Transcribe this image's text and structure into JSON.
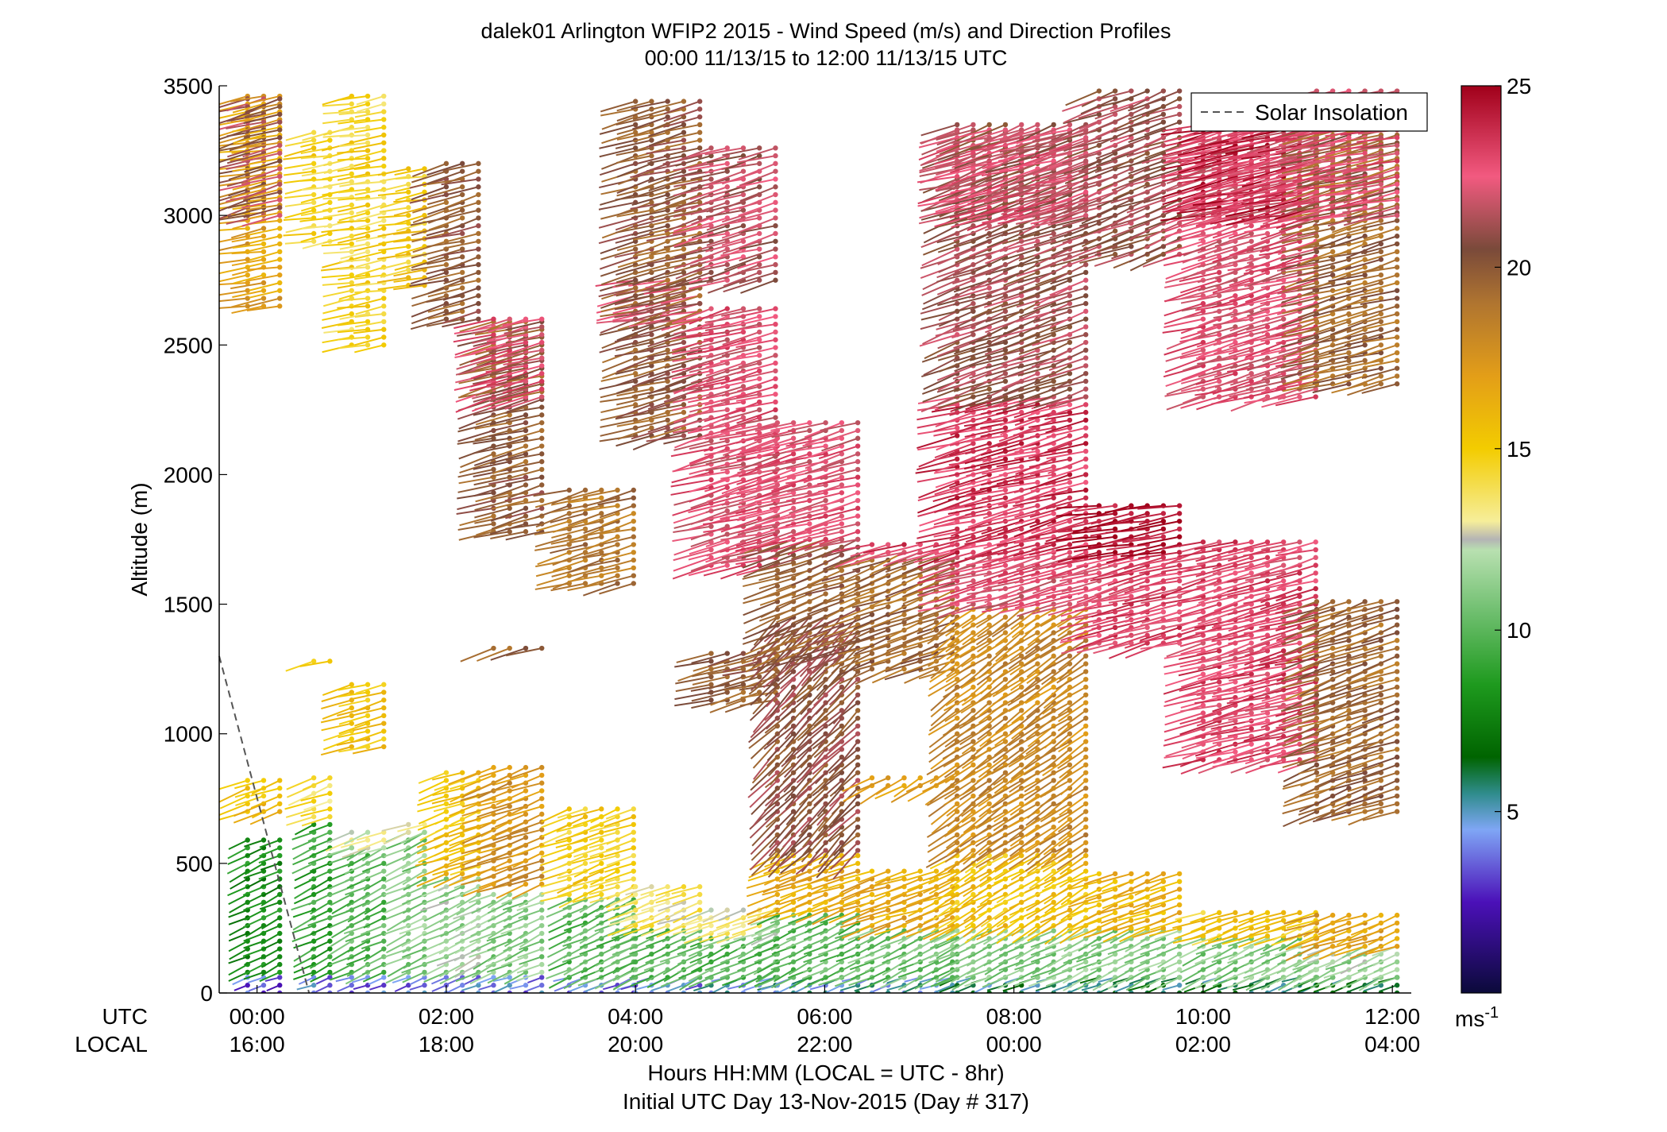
{
  "chart_data": {
    "type": "wind-barb-profile",
    "title_line1": "dalek01 Arlington WFIP2 2015 - Wind Speed (m/s) and Direction Profiles",
    "title_line2": "00:00 11/13/15 to 12:00 11/13/15  UTC",
    "ylabel": "Altitude (m)",
    "ylim": [
      0,
      3500
    ],
    "yticks": [
      0,
      500,
      1000,
      1500,
      2000,
      2500,
      3000,
      3500
    ],
    "xlim_hours": [
      -0.4,
      12.2
    ],
    "utc_row_label": "UTC",
    "local_row_label": "LOCAL",
    "xticks": [
      {
        "hour": 0,
        "utc": "00:00",
        "local": "16:00"
      },
      {
        "hour": 2,
        "utc": "02:00",
        "local": "18:00"
      },
      {
        "hour": 4,
        "utc": "04:00",
        "local": "20:00"
      },
      {
        "hour": 6,
        "utc": "06:00",
        "local": "22:00"
      },
      {
        "hour": 8,
        "utc": "08:00",
        "local": "00:00"
      },
      {
        "hour": 10,
        "utc": "10:00",
        "local": "02:00"
      },
      {
        "hour": 12,
        "utc": "12:00",
        "local": "04:00"
      }
    ],
    "xlabel_line1": "Hours HH:MM  (LOCAL = UTC - 8hr)",
    "xlabel_line2": "Initial UTC Day 13-Nov-2015 (Day # 317)",
    "legend": {
      "entry": "Solar Insolation",
      "placement": "top-right",
      "line_color": "#555555"
    },
    "solar_insolation_line": [
      [
        -0.4,
        1300
      ],
      [
        0.55,
        0
      ]
    ],
    "colorbar": {
      "range": [
        0,
        25
      ],
      "ticks": [
        5,
        10,
        15,
        20,
        25
      ],
      "unit": "ms-1",
      "colors": [
        {
          "v": 0,
          "c": "#0b0a3a"
        },
        {
          "v": 2.5,
          "c": "#4b10b8"
        },
        {
          "v": 4.5,
          "c": "#7fa6f5"
        },
        {
          "v": 5.5,
          "c": "#2f8c8c"
        },
        {
          "v": 6.5,
          "c": "#006400"
        },
        {
          "v": 8.5,
          "c": "#1e9a1e"
        },
        {
          "v": 10.5,
          "c": "#6fbf6f"
        },
        {
          "v": 12.2,
          "c": "#b8e0b0"
        },
        {
          "v": 12.5,
          "c": "#b4b4b4"
        },
        {
          "v": 13,
          "c": "#f6ee9a"
        },
        {
          "v": 15,
          "c": "#f3cc00"
        },
        {
          "v": 17,
          "c": "#e39e18"
        },
        {
          "v": 19,
          "c": "#b07530"
        },
        {
          "v": 20.5,
          "c": "#7a4a3a"
        },
        {
          "v": 22.5,
          "c": "#f25a80"
        },
        {
          "v": 25,
          "c": "#a0001a"
        }
      ]
    },
    "series_notes": "Wind barbs sampled every ~0.17 h; speed shown by colour and shaft length, direction by shaft angle (winds mostly from the west-southwest).",
    "profiles": [
      {
        "t0": -0.1,
        "t1": 0.4,
        "segments": [
          [
            0,
            80,
            3.5,
            250
          ],
          [
            80,
            600,
            8,
            245
          ],
          [
            700,
            830,
            15.5,
            250
          ],
          [
            2650,
            3460,
            17,
            260
          ],
          [
            3000,
            3460,
            21,
            255
          ]
        ]
      },
      {
        "t0": 0.6,
        "t1": 0.9,
        "segments": [
          [
            0,
            80,
            4,
            250
          ],
          [
            80,
            650,
            9,
            245
          ],
          [
            680,
            830,
            14,
            250
          ],
          [
            1280,
            1280,
            15,
            255
          ],
          [
            2900,
            3330,
            14.5,
            260
          ]
        ]
      },
      {
        "t0": 1.0,
        "t1": 1.5,
        "segments": [
          [
            0,
            80,
            4,
            250
          ],
          [
            80,
            560,
            10,
            245
          ],
          [
            560,
            620,
            12.3,
            250
          ],
          [
            950,
            1200,
            15.5,
            255
          ],
          [
            2500,
            3460,
            14.5,
            260
          ]
        ]
      },
      {
        "t0": 1.6,
        "t1": 1.9,
        "segments": [
          [
            0,
            80,
            4,
            250
          ],
          [
            80,
            620,
            11,
            245
          ],
          [
            620,
            650,
            12.4,
            250
          ],
          [
            2730,
            3180,
            15,
            260
          ]
        ]
      },
      {
        "t0": 2.0,
        "t1": 2.4,
        "segments": [
          [
            0,
            80,
            4,
            250
          ],
          [
            80,
            440,
            11.5,
            245
          ],
          [
            460,
            850,
            15.5,
            250
          ],
          [
            2600,
            3220,
            20,
            255
          ]
        ]
      },
      {
        "t0": 2.5,
        "t1": 3.1,
        "segments": [
          [
            0,
            80,
            4,
            250
          ],
          [
            80,
            400,
            11,
            245
          ],
          [
            420,
            870,
            17.5,
            250
          ],
          [
            1330,
            1350,
            20,
            255
          ],
          [
            1780,
            2600,
            20,
            255
          ],
          [
            2300,
            2600,
            22.5,
            255
          ]
        ]
      },
      {
        "t0": 3.3,
        "t1": 4.0,
        "segments": [
          [
            0,
            60,
            4,
            250
          ],
          [
            60,
            360,
            10,
            245
          ],
          [
            380,
            720,
            15,
            250
          ],
          [
            1580,
            1960,
            19,
            255
          ]
        ]
      },
      {
        "t0": 4.0,
        "t1": 4.7,
        "segments": [
          [
            0,
            60,
            4,
            250
          ],
          [
            60,
            260,
            10,
            245
          ],
          [
            260,
            430,
            13.5,
            250
          ],
          [
            2600,
            2750,
            22,
            260
          ],
          [
            2150,
            3460,
            20,
            255
          ]
        ]
      },
      {
        "t0": 4.8,
        "t1": 5.5,
        "segments": [
          [
            0,
            60,
            5,
            250
          ],
          [
            60,
            230,
            10,
            245
          ],
          [
            230,
            330,
            13,
            250
          ],
          [
            1130,
            1330,
            20,
            255
          ],
          [
            1650,
            2650,
            22.5,
            255
          ],
          [
            2750,
            3280,
            21.5,
            255
          ]
        ]
      },
      {
        "t0": 5.5,
        "t1": 6.5,
        "segments": [
          [
            0,
            60,
            5,
            250
          ],
          [
            60,
            320,
            10,
            245
          ],
          [
            320,
            550,
            16.5,
            250
          ],
          [
            550,
            1450,
            20.5,
            225
          ],
          [
            1300,
            1750,
            20,
            250
          ],
          [
            1750,
            2200,
            22.5,
            255
          ]
        ]
      },
      {
        "t0": 6.5,
        "t1": 7.4,
        "segments": [
          [
            0,
            60,
            5,
            250
          ],
          [
            60,
            260,
            10.5,
            245
          ],
          [
            260,
            480,
            16.5,
            250
          ],
          [
            800,
            830,
            17,
            240
          ],
          [
            1250,
            1700,
            19.5,
            250
          ],
          [
            1700,
            1730,
            23,
            255
          ]
        ]
      },
      {
        "t0": 7.4,
        "t1": 8.9,
        "segments": [
          [
            0,
            60,
            5.5,
            250
          ],
          [
            60,
            260,
            11,
            245
          ],
          [
            260,
            550,
            15.5,
            240
          ],
          [
            550,
            1500,
            18,
            235
          ],
          [
            1500,
            1700,
            22.5,
            255
          ],
          [
            1700,
            2300,
            23.5,
            255
          ],
          [
            2300,
            3350,
            21,
            250
          ],
          [
            3000,
            3350,
            22.5,
            255
          ]
        ]
      },
      {
        "t0": 8.9,
        "t1": 9.9,
        "segments": [
          [
            0,
            60,
            6,
            250
          ],
          [
            60,
            250,
            11,
            245
          ],
          [
            250,
            480,
            16,
            250
          ],
          [
            1350,
            1700,
            23,
            255
          ],
          [
            1700,
            1900,
            24.5,
            260
          ],
          [
            2850,
            3500,
            21,
            250
          ]
        ]
      },
      {
        "t0": 10.0,
        "t1": 11.2,
        "segments": [
          [
            0,
            60,
            6,
            250
          ],
          [
            60,
            220,
            11,
            245
          ],
          [
            220,
            320,
            15,
            250
          ],
          [
            900,
            1750,
            23,
            255
          ],
          [
            2300,
            3350,
            22.5,
            255
          ],
          [
            3000,
            3350,
            24,
            258
          ]
        ]
      },
      {
        "t0": 11.2,
        "t1": 12.1,
        "segments": [
          [
            0,
            60,
            6,
            250
          ],
          [
            60,
            180,
            11.5,
            245
          ],
          [
            180,
            320,
            17,
            250
          ],
          [
            700,
            1520,
            19.5,
            250
          ],
          [
            2350,
            3480,
            19.5,
            255
          ],
          [
            3000,
            3480,
            22.5,
            258
          ]
        ]
      }
    ]
  }
}
